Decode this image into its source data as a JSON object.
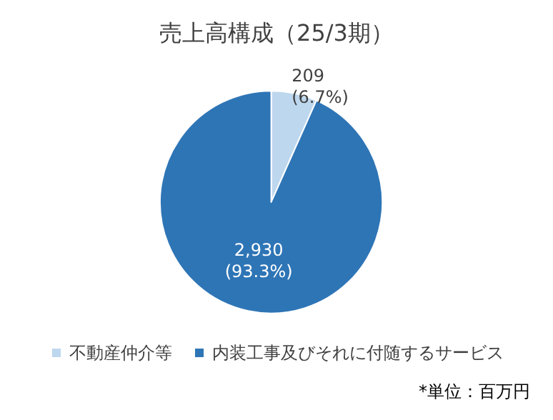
{
  "chart_data": {
    "type": "pie",
    "title": "売上高構成（25/3期）",
    "categories": [
      "不動産仲介等",
      "内装工事及びそれに付随するサービス"
    ],
    "values": [
      209,
      2930
    ],
    "colors": [
      "#bdd7ee",
      "#2e75b6"
    ],
    "value_labels": [
      "209\n(6.7%)",
      "2,930\n(93.3%)"
    ],
    "legend": "bottom",
    "annotations": [
      "*単位：百万円"
    ]
  }
}
